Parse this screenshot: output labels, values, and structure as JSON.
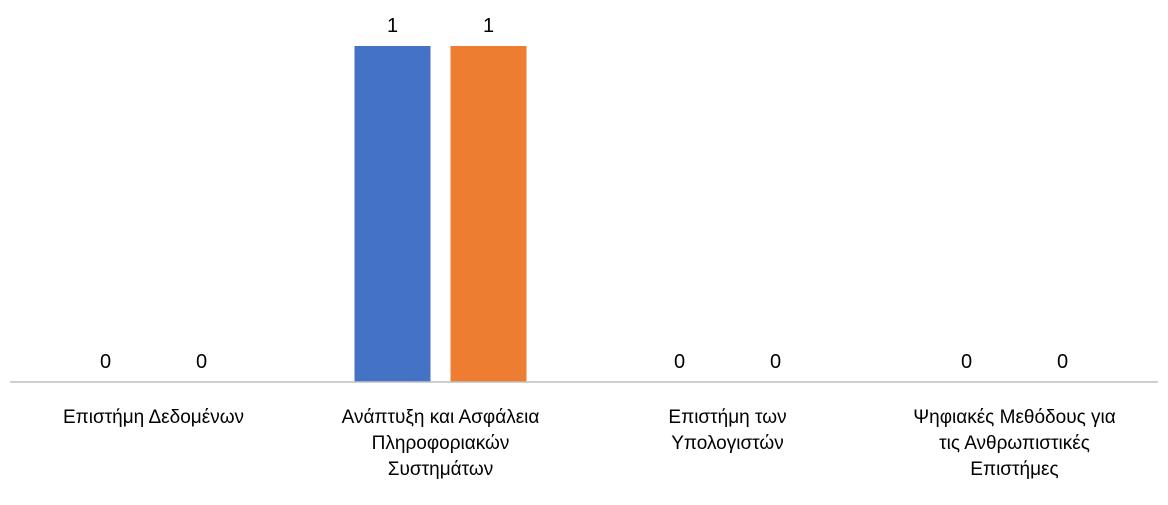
{
  "chart_data": {
    "type": "bar",
    "categories": [
      [
        "Επιστήμη Δεδομένων"
      ],
      [
        "Ανάπτυξη και Ασφάλεια",
        "Πληροφοριακών",
        "Συστημάτων"
      ],
      [
        "Επιστήμη των",
        "Υπολογιστών"
      ],
      [
        "Ψηφιακές Μεθόδους για",
        "τις Ανθρωπιστικές",
        "Επιστήμες"
      ]
    ],
    "series": [
      {
        "values": [
          0,
          1,
          0,
          0
        ],
        "color": "#4472C4"
      },
      {
        "values": [
          0,
          1,
          0,
          0
        ],
        "color": "#ED7D31"
      }
    ],
    "ylim": [
      0,
      1
    ],
    "grid": false,
    "data_labels": true,
    "axis_color": "#BFBFBF"
  }
}
